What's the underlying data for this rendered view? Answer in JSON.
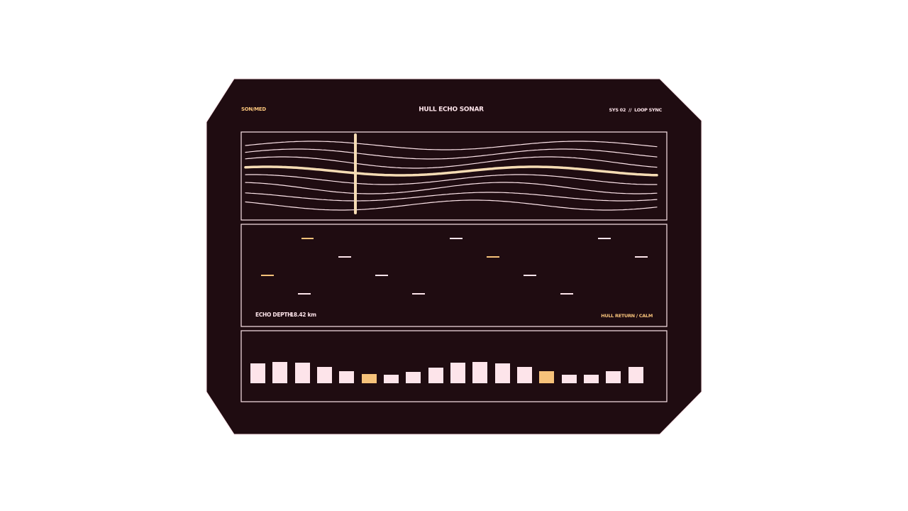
{
  "header": {
    "code": "SON/MED",
    "title": "HULL ECHO SONAR",
    "status": "SYS 02  //  LOOP SYNC"
  },
  "echo": {
    "label": "ECHO DEPTH",
    "depth": "18.42 km",
    "status": "HULL RETURN / CALM"
  }
}
